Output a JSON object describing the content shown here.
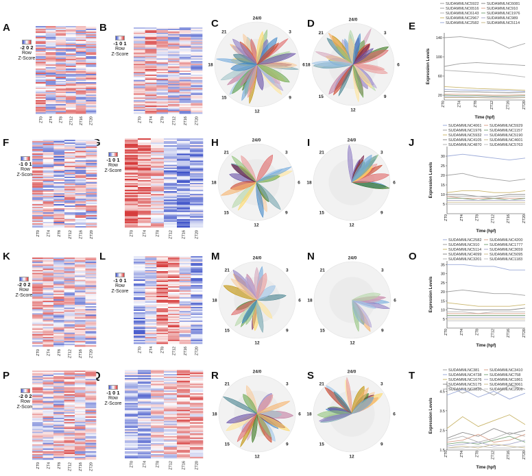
{
  "figure": {
    "rows": [
      {
        "letters": [
          "A",
          "B",
          "C",
          "D",
          "E"
        ],
        "key_a": {
          "scale": "-2 0 2",
          "label1": "Row",
          "label2": "Z-Score"
        },
        "key_b": {
          "scale": "-1 0 1",
          "label1": "Row",
          "label2": "Z-Score"
        }
      },
      {
        "letters": [
          "F",
          "G",
          "H",
          "I",
          "J"
        ],
        "key_a": {
          "scale": "-1 0 1",
          "label1": "Row",
          "label2": "Z-Score"
        },
        "key_b": {
          "scale": "-1 0 1",
          "label1": "Row",
          "label2": "Z-Score"
        }
      },
      {
        "letters": [
          "K",
          "L",
          "M",
          "N",
          "O"
        ],
        "key_a": {
          "scale": "-2 0 2",
          "label1": "Row",
          "label2": "Z-Score"
        },
        "key_b": {
          "scale": "-1 0 1",
          "label1": "Row",
          "label2": "Z-Score"
        }
      },
      {
        "letters": [
          "P",
          "Q",
          "R",
          "S",
          "T"
        ],
        "key_a": {
          "scale": "-2 0 2",
          "label1": "Row",
          "label2": "Z-Score"
        },
        "key_b": {
          "scale": "-1 0 1",
          "label1": "Row",
          "label2": "Z-Score"
        }
      }
    ],
    "heatmap_columns": [
      "ZT0",
      "ZT4",
      "ZT8",
      "ZT12",
      "ZT16",
      "ZT20"
    ],
    "clock_labels": [
      "24/0",
      "3",
      "6",
      "9",
      "12",
      "15",
      "18",
      "21"
    ],
    "colors": {
      "low": "#3b50c8",
      "mid": "#ffffff",
      "high": "#d63a3a"
    }
  },
  "chart_data": [
    {
      "panel": "E",
      "type": "line",
      "x": [
        "ZT0",
        "ZT4",
        "ZT8",
        "ZT12",
        "ZT16",
        "ZT20"
      ],
      "xlabel": "Time (hpf)",
      "ylabel": "Expression Levels",
      "ylim": [
        10,
        150
      ],
      "yticks": [
        20,
        60,
        100,
        140
      ],
      "series": [
        {
          "name": "SUDAMMLNC5922",
          "color": "#9e9e9e",
          "values": [
            140,
            142,
            138,
            134,
            118,
            128
          ]
        },
        {
          "name": "SUDAMMLNC6516",
          "color": "#9e9e9e",
          "values": [
            80,
            86,
            88,
            86,
            84,
            82
          ]
        },
        {
          "name": "SUDAMMLNC6143",
          "color": "#b0b0b0",
          "values": [
            72,
            70,
            68,
            66,
            62,
            58
          ]
        },
        {
          "name": "SUDAMMLNC2967",
          "color": "#c9b56a",
          "values": [
            38,
            36,
            34,
            33,
            32,
            30
          ]
        },
        {
          "name": "SUDAMMLNC2582",
          "color": "#9aa9d8",
          "values": [
            32,
            31,
            30,
            30,
            29,
            28
          ]
        },
        {
          "name": "SUDAMMLNC6081",
          "color": "#8a8a8a",
          "values": [
            28,
            27,
            27,
            26,
            25,
            26
          ]
        },
        {
          "name": "SUDAMMLNC910",
          "color": "#d9a08a",
          "values": [
            22,
            22,
            21,
            20,
            20,
            21
          ]
        },
        {
          "name": "SUDAMMLNC1976",
          "color": "#7aa37a",
          "values": [
            20,
            19,
            19,
            18,
            18,
            19
          ]
        },
        {
          "name": "SUDAMMLNC989",
          "color": "#a5a5c8",
          "values": [
            17,
            17,
            16,
            16,
            15,
            16
          ]
        },
        {
          "name": "SUDAMMLNC5114",
          "color": "#c8b88a",
          "values": [
            15,
            15,
            15,
            14,
            14,
            15
          ]
        }
      ]
    },
    {
      "panel": "J",
      "type": "line",
      "x": [
        "ZT0",
        "ZT4",
        "ZT8",
        "ZT12",
        "ZT16",
        "ZT20"
      ],
      "xlabel": "Time (hpf)",
      "ylabel": "Expression Levels",
      "ylim": [
        0,
        35
      ],
      "yticks": [
        5,
        10,
        15,
        20,
        25,
        30
      ],
      "series": [
        {
          "name": "SUDAMMLNC4061",
          "color": "#9aa9d8",
          "values": [
            30,
            31,
            30,
            29,
            28,
            29
          ]
        },
        {
          "name": "SUDAMMLNC1976",
          "color": "#9e9e9e",
          "values": [
            20,
            21,
            19,
            18,
            17,
            18
          ]
        },
        {
          "name": "SUDAMMLNC5932",
          "color": "#c9b56a",
          "values": [
            11,
            12,
            12,
            11,
            11,
            12
          ]
        },
        {
          "name": "SUDAMMLNC4105",
          "color": "#8a8a8a",
          "values": [
            10,
            10,
            9,
            9,
            10,
            10
          ]
        },
        {
          "name": "SUDAMMLNC4870",
          "color": "#b0b0b0",
          "values": [
            9,
            9,
            9,
            8,
            9,
            9
          ]
        },
        {
          "name": "SUDAMMLNC5929",
          "color": "#d9a08a",
          "values": [
            9,
            8,
            8,
            8,
            8,
            8
          ]
        },
        {
          "name": "SUDAMMLNC1157",
          "color": "#7aa37a",
          "values": [
            8,
            8,
            7,
            8,
            7,
            8
          ]
        },
        {
          "name": "SUDAMMLNC5190",
          "color": "#a5a5c8",
          "values": [
            7,
            7,
            7,
            7,
            7,
            7
          ]
        },
        {
          "name": "SUDAMMLNC4601",
          "color": "#c8b88a",
          "values": [
            6,
            6,
            6,
            6,
            6,
            6
          ]
        },
        {
          "name": "SUDAMMLNC5763",
          "color": "#bcbcbc",
          "values": [
            5,
            5,
            5,
            5,
            5,
            5
          ]
        }
      ]
    },
    {
      "panel": "O",
      "type": "line",
      "x": [
        "ZT0",
        "ZT4",
        "ZT8",
        "ZT12",
        "ZT16",
        "ZT20"
      ],
      "xlabel": "Time (hpf)",
      "ylabel": "Expression Levels",
      "ylim": [
        0,
        37
      ],
      "yticks": [
        5,
        10,
        15,
        20,
        25,
        30,
        35
      ],
      "series": [
        {
          "name": "SUDAMMLNC2582",
          "color": "#9aa9d8",
          "values": [
            35,
            35,
            34,
            34,
            32,
            32
          ]
        },
        {
          "name": "SUDAMMLNC910",
          "color": "#9e9e9e",
          "values": [
            20,
            21,
            20,
            19,
            19,
            18
          ]
        },
        {
          "name": "SUDAMMLNC5114",
          "color": "#c9b56a",
          "values": [
            14,
            13,
            12,
            12,
            12,
            13
          ]
        },
        {
          "name": "SUDAMMLNC4099",
          "color": "#8a8a8a",
          "values": [
            11,
            10,
            10,
            10,
            10,
            11
          ]
        },
        {
          "name": "SUDAMMLNC3201",
          "color": "#b0b0b0",
          "values": [
            9,
            9,
            8,
            9,
            9,
            9
          ]
        },
        {
          "name": "SUDAMMLNC4200",
          "color": "#d9a08a",
          "values": [
            8,
            8,
            8,
            8,
            8,
            8
          ]
        },
        {
          "name": "SUDAMMLNC1777",
          "color": "#7aa37a",
          "values": [
            7,
            7,
            7,
            7,
            7,
            7
          ]
        },
        {
          "name": "SUDAMMLNC3659",
          "color": "#a5a5c8",
          "values": [
            6,
            6,
            6,
            6,
            6,
            6
          ]
        },
        {
          "name": "SUDAMMLNC5095",
          "color": "#c8b88a",
          "values": [
            5,
            5,
            5,
            5,
            5,
            5
          ]
        },
        {
          "name": "SUDAMMLNC1183",
          "color": "#bcbcbc",
          "values": [
            4,
            4,
            4,
            4,
            4,
            4
          ]
        }
      ]
    },
    {
      "panel": "T",
      "type": "line",
      "x": [
        "ZT0",
        "ZT4",
        "ZT8",
        "ZT12",
        "ZT16",
        "ZT20"
      ],
      "xlabel": "Time (hpf)",
      "ylabel": "Expression Levels",
      "ylim": [
        1.5,
        5
      ],
      "yticks": [
        1.5,
        2.5,
        3.5,
        4.5
      ],
      "series": [
        {
          "name": "SUDAMMLNC381",
          "color": "#9e9e9e",
          "values": [
            4.8,
            4.4,
            4.7,
            4.3,
            4.8,
            4.6
          ]
        },
        {
          "name": "SUDAMMLNC4738",
          "color": "#9aa9d8",
          "values": [
            4.3,
            4.6,
            4.2,
            4.5,
            4.1,
            4.4
          ]
        },
        {
          "name": "SUDAMMLNC1676",
          "color": "#c9b56a",
          "values": [
            2.6,
            3.2,
            2.7,
            3.0,
            3.3,
            2.8
          ]
        },
        {
          "name": "SUDAMMLNC5175",
          "color": "#8a8a8a",
          "values": [
            2.1,
            2.4,
            2.2,
            2.6,
            2.3,
            2.5
          ]
        },
        {
          "name": "SUDAMMLNC3830",
          "color": "#b0b0b0",
          "values": [
            2.0,
            2.2,
            1.9,
            2.1,
            2.4,
            2.2
          ]
        },
        {
          "name": "SUDAMMLNC3410",
          "color": "#d9a08a",
          "values": [
            1.9,
            2.0,
            2.3,
            1.9,
            2.0,
            2.3
          ]
        },
        {
          "name": "SUDAMMLNC758",
          "color": "#7aa37a",
          "values": [
            1.8,
            1.9,
            1.8,
            2.0,
            2.2,
            1.9
          ]
        },
        {
          "name": "SUDAMMLNC1861",
          "color": "#a5a5c8",
          "values": [
            1.7,
            1.8,
            1.9,
            1.7,
            1.8,
            2.0
          ]
        },
        {
          "name": "SUDAMMLNC3061",
          "color": "#c8b88a",
          "values": [
            1.6,
            1.7,
            1.6,
            1.8,
            1.7,
            1.6
          ]
        },
        {
          "name": "SUDAMMLNC2906",
          "color": "#bcbcbc",
          "values": [
            1.6,
            1.6,
            1.7,
            1.6,
            1.6,
            1.7
          ]
        }
      ]
    }
  ]
}
